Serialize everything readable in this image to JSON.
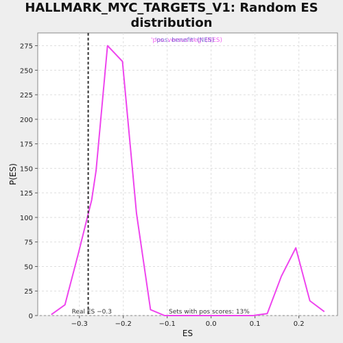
{
  "title_line1": "HALLMARK_MYC_TARGETS_V1: Random ES",
  "title_line2": "distribution",
  "chart_data": {
    "type": "line",
    "xlabel": "ES",
    "ylabel": "P(ES)",
    "xlim": [
      -0.395,
      0.288
    ],
    "ylim": [
      0,
      288
    ],
    "xticks": [
      -0.3,
      -0.2,
      -0.1,
      0.0,
      0.1,
      0.2
    ],
    "xtick_labels": [
      "−0.3",
      "−0.2",
      "−0.1",
      "0.0",
      "0.1",
      "0.2"
    ],
    "yticks": [
      0,
      25,
      50,
      75,
      100,
      125,
      150,
      175,
      200,
      225,
      250,
      275
    ],
    "grid": true,
    "series": [
      {
        "name": "'pos. versus neg' (NES)",
        "color": "#ee44ee",
        "x": [
          -0.364,
          -0.333,
          -0.302,
          -0.272,
          -0.262,
          -0.236,
          -0.202,
          -0.17,
          -0.138,
          -0.106,
          -0.074,
          -0.042,
          0.0,
          0.032,
          0.064,
          0.096,
          0.128,
          0.16,
          0.193,
          0.225,
          0.258
        ],
        "y": [
          1,
          11,
          64,
          118,
          148,
          275,
          259,
          104,
          6,
          0,
          0,
          0,
          0,
          0,
          0,
          0,
          2,
          40,
          69,
          15,
          4
        ]
      }
    ],
    "real_es": -0.28,
    "real_es_label": "Real ES −0.3",
    "pos_scores_label": "Sets with pos scores: 13%",
    "legend_text_pink": "'pos. versus neg' (NES)",
    "legend_text_blue": "'pos. benefit' (NES)",
    "legend_colors": {
      "pink": "#ee44ee",
      "blue": "#6a5acd"
    }
  }
}
